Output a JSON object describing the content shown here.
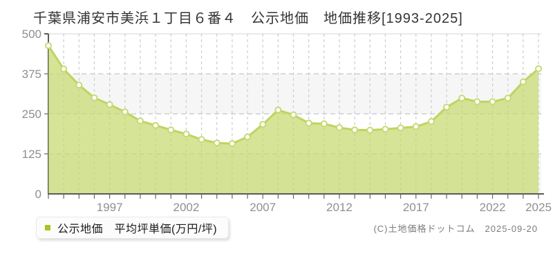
{
  "page": {
    "title": "千葉県浦安市美浜１丁目６番４　公示地価　地価推移[1993-2025]"
  },
  "legend": {
    "label": "公示地価　平均坪単価(万円/坪)",
    "marker_color": "#a4c525"
  },
  "footer": {
    "copyright": "(C)土地価格ドットコム　2025-09-20"
  },
  "chart_data": {
    "type": "area",
    "title": "千葉県浦安市美浜１丁目６番４　公示地価　地価推移[1993-2025]",
    "series_name": "公示地価 平均坪単価(万円/坪)",
    "x": [
      1993,
      1994,
      1995,
      1996,
      1997,
      1998,
      1999,
      2000,
      2001,
      2002,
      2003,
      2004,
      2005,
      2006,
      2007,
      2008,
      2009,
      2010,
      2011,
      2012,
      2013,
      2014,
      2015,
      2016,
      2017,
      2018,
      2019,
      2020,
      2021,
      2022,
      2023,
      2024,
      2025
    ],
    "values": [
      463,
      390,
      340,
      300,
      279,
      256,
      228,
      214,
      200,
      187,
      170,
      159,
      157,
      178,
      217,
      262,
      247,
      221,
      219,
      207,
      200,
      199,
      202,
      206,
      210,
      226,
      271,
      299,
      288,
      288,
      299,
      350,
      391
    ],
    "xlabel": "",
    "ylabel": "万円/坪",
    "ylim": [
      0,
      500
    ],
    "y_ticks": [
      0,
      125,
      250,
      375,
      500
    ],
    "x_tick_labels": [
      1997,
      2002,
      2007,
      2012,
      2017,
      2022,
      2025
    ],
    "grid": "dashed, every year vertical + every 125 horizontal, alternating plot bands",
    "legend_position": "bottom-left",
    "colors": {
      "area_fill": "rgba(197,218,110,0.72)",
      "line": "#bed45f",
      "marker_fill": "#ffffff",
      "marker_stroke": "#c5da74",
      "band_alt": "#f6f6f6",
      "band_main": "#ffffff",
      "grid": "#cdcdcd",
      "plot_top_border": "#e2e2e2",
      "axis": "#5a5a5a",
      "tick": "#666666",
      "tick_label": "#8f8f8f",
      "legend_marker": "#a4c525"
    }
  }
}
